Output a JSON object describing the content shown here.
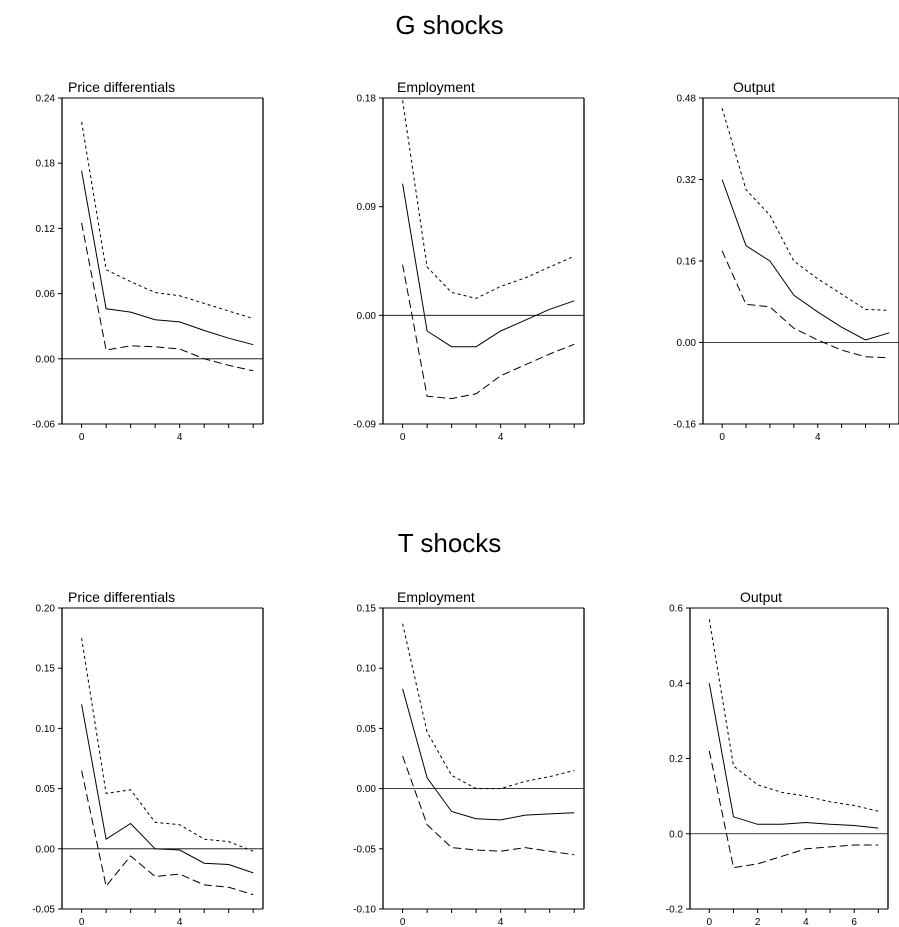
{
  "sections": [
    {
      "title": "G shocks"
    },
    {
      "title": "T shocks"
    }
  ],
  "chart_data": [
    {
      "type": "line",
      "title": "Price differentials",
      "x": [
        0,
        1,
        2,
        3,
        4,
        5,
        6,
        7
      ],
      "x_ticks": [
        0,
        4
      ],
      "y_ticks": [
        -0.06,
        0.0,
        0.06,
        0.12,
        0.18,
        0.24
      ],
      "y_tick_labels": [
        "-0.06",
        "0.00",
        "0.06",
        "0.12",
        "0.18",
        "0.24"
      ],
      "xlim": [
        -0.8,
        7.4
      ],
      "ylim": [
        -0.06,
        0.24
      ],
      "series": [
        {
          "style": "solid",
          "values": [
            0.173,
            0.046,
            0.043,
            0.036,
            0.034,
            0.026,
            0.019,
            0.013
          ]
        },
        {
          "style": "dotted",
          "values": [
            0.218,
            0.082,
            0.071,
            0.061,
            0.058,
            0.051,
            0.044,
            0.037
          ]
        },
        {
          "style": "dashed",
          "values": [
            0.125,
            0.008,
            0.012,
            0.011,
            0.009,
            0.0,
            -0.006,
            -0.011
          ]
        }
      ]
    },
    {
      "type": "line",
      "title": "Employment",
      "x": [
        0,
        1,
        2,
        3,
        4,
        5,
        6,
        7
      ],
      "x_ticks": [
        0,
        4
      ],
      "y_ticks": [
        -0.09,
        0.0,
        0.09,
        0.18
      ],
      "y_tick_labels": [
        "-0.09",
        "0.00",
        "0.09",
        "0.18"
      ],
      "xlim": [
        -0.8,
        7.4
      ],
      "ylim": [
        -0.09,
        0.18
      ],
      "series": [
        {
          "style": "solid",
          "values": [
            0.109,
            -0.013,
            -0.026,
            -0.026,
            -0.013,
            -0.004,
            0.005,
            0.012
          ]
        },
        {
          "style": "dotted",
          "values": [
            0.178,
            0.04,
            0.019,
            0.014,
            0.024,
            0.031,
            0.04,
            0.049
          ]
        },
        {
          "style": "dashed",
          "values": [
            0.042,
            -0.067,
            -0.069,
            -0.065,
            -0.05,
            -0.041,
            -0.032,
            -0.024
          ]
        }
      ]
    },
    {
      "type": "line",
      "title": "Output",
      "x": [
        0,
        1,
        2,
        3,
        4,
        5,
        6,
        7
      ],
      "x_ticks": [
        0,
        4
      ],
      "y_ticks": [
        -0.16,
        0.0,
        0.16,
        0.32,
        0.48
      ],
      "y_tick_labels": [
        "-0.16",
        "0.00",
        "0.16",
        "0.32",
        "0.48"
      ],
      "xlim": [
        -0.8,
        7.4
      ],
      "ylim": [
        -0.16,
        0.48
      ],
      "series": [
        {
          "style": "solid",
          "values": [
            0.32,
            0.19,
            0.16,
            0.093,
            0.06,
            0.03,
            0.005,
            0.019
          ]
        },
        {
          "style": "dotted",
          "values": [
            0.46,
            0.3,
            0.25,
            0.16,
            0.125,
            0.095,
            0.065,
            0.063
          ]
        },
        {
          "style": "dashed",
          "values": [
            0.18,
            0.075,
            0.07,
            0.028,
            0.005,
            -0.015,
            -0.028,
            -0.03
          ]
        }
      ]
    },
    {
      "type": "line",
      "title": "Price differentials",
      "x": [
        0,
        1,
        2,
        3,
        4,
        5,
        6,
        7
      ],
      "x_ticks": [
        0,
        4
      ],
      "y_ticks": [
        -0.05,
        0.0,
        0.05,
        0.1,
        0.15,
        0.2
      ],
      "y_tick_labels": [
        "-0.05",
        "0.00",
        "0.05",
        "0.10",
        "0.15",
        "0.20"
      ],
      "xlim": [
        -0.8,
        7.4
      ],
      "ylim": [
        -0.05,
        0.2
      ],
      "series": [
        {
          "style": "solid",
          "values": [
            0.12,
            0.008,
            0.021,
            0.0,
            -0.001,
            -0.012,
            -0.013,
            -0.02
          ]
        },
        {
          "style": "dotted",
          "values": [
            0.175,
            0.046,
            0.049,
            0.022,
            0.02,
            0.008,
            0.006,
            -0.002
          ]
        },
        {
          "style": "dashed",
          "values": [
            0.065,
            -0.031,
            -0.006,
            -0.023,
            -0.021,
            -0.03,
            -0.032,
            -0.038
          ]
        }
      ]
    },
    {
      "type": "line",
      "title": "Employment",
      "x": [
        0,
        1,
        2,
        3,
        4,
        5,
        6,
        7
      ],
      "x_ticks": [
        0,
        4
      ],
      "y_ticks": [
        -0.1,
        -0.05,
        0.0,
        0.05,
        0.1,
        0.15
      ],
      "y_tick_labels": [
        "-0.10",
        "-0.05",
        "0.00",
        "0.05",
        "0.10",
        "0.15"
      ],
      "xlim": [
        -0.8,
        7.4
      ],
      "ylim": [
        -0.1,
        0.15
      ],
      "series": [
        {
          "style": "solid",
          "values": [
            0.083,
            0.009,
            -0.019,
            -0.025,
            -0.026,
            -0.022,
            -0.021,
            -0.02
          ]
        },
        {
          "style": "dotted",
          "values": [
            0.137,
            0.047,
            0.011,
            0.0,
            0.0,
            0.006,
            0.01,
            0.015
          ]
        },
        {
          "style": "dashed",
          "values": [
            0.027,
            -0.03,
            -0.049,
            -0.051,
            -0.052,
            -0.049,
            -0.052,
            -0.055
          ]
        }
      ]
    },
    {
      "type": "line",
      "title": "Output",
      "x": [
        0,
        1,
        2,
        3,
        4,
        5,
        6,
        7
      ],
      "x_ticks": [
        0,
        2,
        4,
        6
      ],
      "y_ticks": [
        -0.2,
        0.0,
        0.2,
        0.4,
        0.6
      ],
      "y_tick_labels": [
        "-0.2",
        "0.0",
        "0.2",
        "0.4",
        "0.6"
      ],
      "xlim": [
        -0.8,
        7.4
      ],
      "ylim": [
        -0.2,
        0.6
      ],
      "series": [
        {
          "style": "solid",
          "values": [
            0.4,
            0.045,
            0.025,
            0.025,
            0.03,
            0.025,
            0.022,
            0.015
          ]
        },
        {
          "style": "dotted",
          "values": [
            0.57,
            0.18,
            0.13,
            0.11,
            0.1,
            0.085,
            0.075,
            0.06
          ]
        },
        {
          "style": "dashed",
          "values": [
            0.22,
            -0.09,
            -0.08,
            -0.06,
            -0.04,
            -0.035,
            -0.03,
            -0.03
          ]
        }
      ]
    }
  ]
}
